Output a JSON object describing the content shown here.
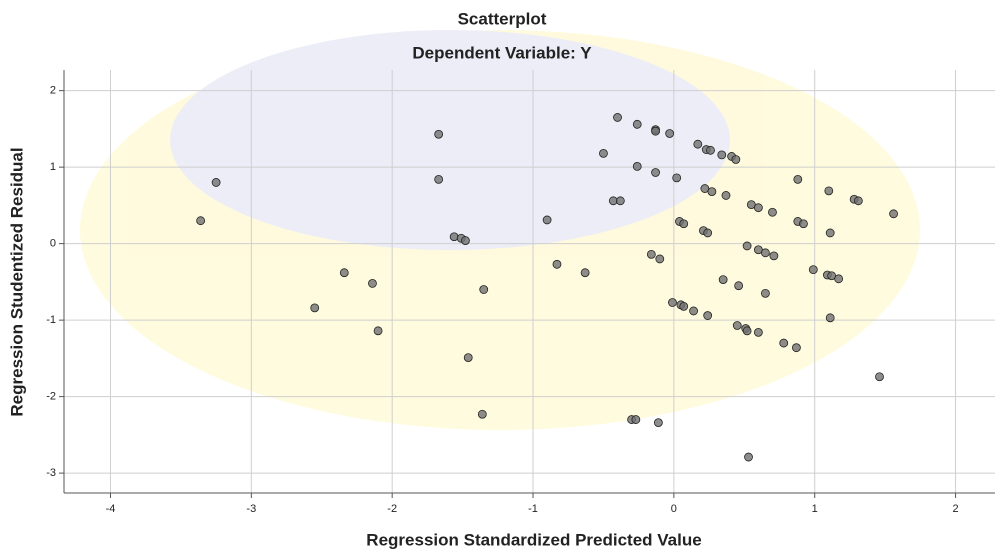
{
  "chart_data": {
    "type": "scatter",
    "title": "Scatterplot",
    "subtitle": "Dependent Variable: Y",
    "x_label": "Regression Standardized Predicted Value",
    "y_label": "Regression Studentized Residual",
    "color": "#707070",
    "grid": true,
    "xlim": [
      -4.33,
      2.28
    ],
    "ylim": [
      -3.26,
      2.27
    ],
    "xticks": [
      -4,
      -3,
      -2,
      -1,
      0,
      1,
      2
    ],
    "yticks": [
      -3,
      -2,
      -1,
      0,
      1,
      2
    ],
    "x": [
      -3.25,
      -3.36,
      -2.55,
      -2.34,
      -2.14,
      -2.1,
      -1.67,
      -1.67,
      -1.56,
      -1.51,
      -1.48,
      -1.46,
      -1.35,
      -1.36,
      -0.9,
      -0.83,
      -0.63,
      -0.5,
      -0.43,
      -0.38,
      -0.4,
      -0.26,
      -0.26,
      -0.3,
      -0.27,
      -0.13,
      -0.13,
      -0.03,
      -0.13,
      -0.16,
      -0.1,
      -0.11,
      0.02,
      0.04,
      0.07,
      -0.01,
      0.05,
      0.07,
      0.14,
      0.24,
      0.17,
      0.23,
      0.26,
      0.34,
      0.41,
      0.44,
      0.22,
      0.27,
      0.37,
      0.21,
      0.24,
      0.35,
      0.46,
      0.45,
      0.51,
      0.52,
      0.53,
      0.52,
      0.55,
      0.6,
      0.7,
      0.6,
      0.65,
      0.71,
      0.65,
      0.6,
      0.78,
      0.87,
      0.88,
      0.88,
      0.92,
      0.99,
      1.1,
      1.11,
      1.09,
      1.12,
      1.17,
      1.11,
      1.28,
      1.31,
      1.46,
      1.56
    ],
    "values": [
      0.8,
      0.3,
      -0.84,
      -0.38,
      -0.52,
      -1.14,
      1.43,
      0.84,
      0.09,
      0.07,
      0.04,
      -1.49,
      -0.6,
      -2.23,
      0.31,
      -0.27,
      -0.38,
      1.18,
      0.56,
      0.56,
      1.65,
      1.56,
      1.01,
      -2.3,
      -2.3,
      1.49,
      1.47,
      1.44,
      0.93,
      -0.14,
      -0.2,
      -2.34,
      0.86,
      0.29,
      0.26,
      -0.77,
      -0.8,
      -0.82,
      -0.88,
      -0.94,
      1.3,
      1.23,
      1.22,
      1.16,
      1.14,
      1.1,
      0.72,
      0.68,
      0.63,
      0.17,
      0.14,
      -0.47,
      -0.55,
      -1.07,
      -1.11,
      -1.14,
      -2.79,
      -0.03,
      0.51,
      0.47,
      0.41,
      -0.08,
      -0.12,
      -0.16,
      -0.65,
      -1.16,
      -1.3,
      -1.36,
      0.84,
      0.29,
      0.26,
      -0.34,
      0.69,
      0.14,
      -0.41,
      -0.42,
      -0.46,
      -0.97,
      0.58,
      0.56,
      -1.74,
      0.39
    ]
  }
}
